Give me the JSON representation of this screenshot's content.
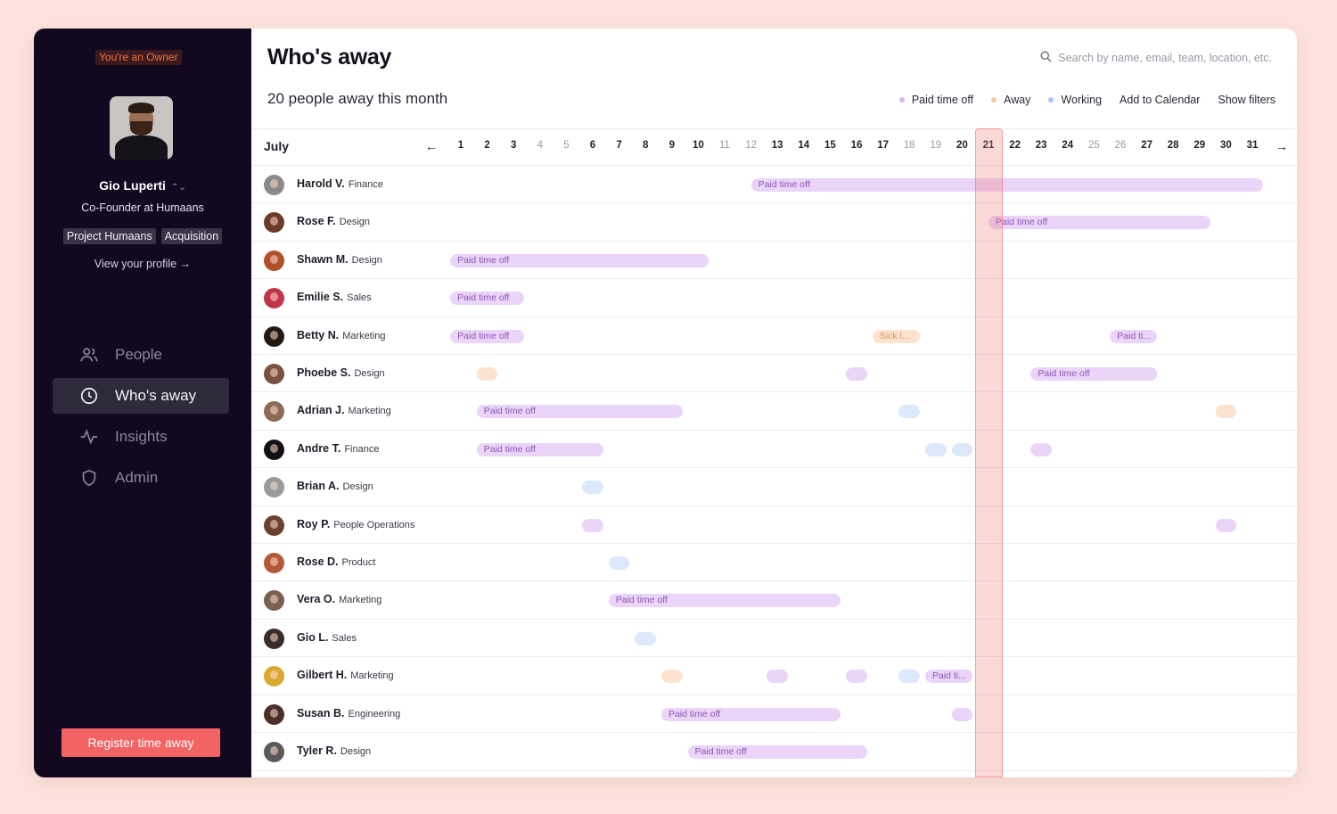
{
  "sidebar": {
    "owner_badge": "You're an Owner",
    "user_name": "Gio Luperti",
    "user_role": "Co-Founder at Humaans",
    "tags": [
      "Project Humaans",
      "Acquisition"
    ],
    "profile_link": "View your profile →",
    "nav": [
      {
        "label": "People",
        "icon": "people-icon",
        "active": false
      },
      {
        "label": "Who's away",
        "icon": "clock-icon",
        "active": true
      },
      {
        "label": "Insights",
        "icon": "activity-icon",
        "active": false
      },
      {
        "label": "Admin",
        "icon": "shield-icon",
        "active": false
      }
    ],
    "register_button": "Register time away"
  },
  "header": {
    "title": "Who's away",
    "search_placeholder": "Search by name, email, team, location, etc.",
    "summary": "20 people away this month",
    "legend": [
      {
        "label": "Paid time off",
        "color": "#d9b8f2"
      },
      {
        "label": "Away",
        "color": "#f9c9a4"
      },
      {
        "label": "Working",
        "color": "#a9c6f1"
      }
    ],
    "add_to_calendar": "Add to Calendar",
    "show_filters": "Show filters"
  },
  "calendar": {
    "month": "July",
    "prev_arrow": "←",
    "next_arrow": "→",
    "today": 21,
    "days": [
      {
        "d": "1",
        "we": false
      },
      {
        "d": "2",
        "we": false
      },
      {
        "d": "3",
        "we": false
      },
      {
        "d": "4",
        "we": true
      },
      {
        "d": "5",
        "we": true
      },
      {
        "d": "6",
        "we": false
      },
      {
        "d": "7",
        "we": false
      },
      {
        "d": "8",
        "we": false
      },
      {
        "d": "9",
        "we": false
      },
      {
        "d": "10",
        "we": false
      },
      {
        "d": "11",
        "we": true
      },
      {
        "d": "12",
        "we": true
      },
      {
        "d": "13",
        "we": false
      },
      {
        "d": "14",
        "we": false
      },
      {
        "d": "15",
        "we": false
      },
      {
        "d": "16",
        "we": false
      },
      {
        "d": "17",
        "we": false
      },
      {
        "d": "18",
        "we": true
      },
      {
        "d": "19",
        "we": true
      },
      {
        "d": "20",
        "we": false
      },
      {
        "d": "21",
        "we": false
      },
      {
        "d": "22",
        "we": false
      },
      {
        "d": "23",
        "we": false
      },
      {
        "d": "24",
        "we": false
      },
      {
        "d": "25",
        "we": true
      },
      {
        "d": "26",
        "we": true
      },
      {
        "d": "27",
        "we": false
      },
      {
        "d": "28",
        "we": false
      },
      {
        "d": "29",
        "we": false
      },
      {
        "d": "30",
        "we": false
      },
      {
        "d": "31",
        "we": false
      }
    ],
    "rows": [
      {
        "name": "Harold V.",
        "team": "Finance",
        "avatar": "#8a8a8a",
        "events": [
          {
            "type": "pto",
            "label": "Paid time off",
            "start": 12.0,
            "end": 31.4
          }
        ]
      },
      {
        "name": "Rose F.",
        "team": "Design",
        "avatar": "#6b3b2a",
        "events": [
          {
            "type": "pto",
            "label": "Paid time off",
            "start": 21.0,
            "end": 29.4
          }
        ]
      },
      {
        "name": "Shawn M.",
        "team": "Design",
        "avatar": "#b0502c",
        "events": [
          {
            "type": "pto",
            "label": "Paid time off",
            "start": 0.6,
            "end": 10.4
          }
        ]
      },
      {
        "name": "Emilie S.",
        "team": "Sales",
        "avatar": "#c2344a",
        "events": [
          {
            "type": "pto",
            "label": "Paid time off",
            "start": 0.6,
            "end": 3.4
          }
        ]
      },
      {
        "name": "Betty N.",
        "team": "Marketing",
        "avatar": "#241814",
        "events": [
          {
            "type": "pto",
            "label": "Paid time off",
            "start": 0.6,
            "end": 3.4
          },
          {
            "type": "away",
            "label": "Sick l...",
            "start": 16.6,
            "end": 18.4
          },
          {
            "type": "pto",
            "label": "Paid ti...",
            "start": 25.6,
            "end": 27.4
          }
        ]
      },
      {
        "name": "Phoebe S.",
        "team": "Design",
        "avatar": "#7a5340",
        "events": [
          {
            "type": "away",
            "label": "",
            "start": 1.6,
            "end": 2.4
          },
          {
            "type": "pto",
            "label": "",
            "start": 15.6,
            "end": 16.4
          },
          {
            "type": "pto",
            "label": "Paid time off",
            "start": 22.6,
            "end": 27.4
          }
        ]
      },
      {
        "name": "Adrian J.",
        "team": "Marketing",
        "avatar": "#8c6a55",
        "events": [
          {
            "type": "pto",
            "label": "Paid time off",
            "start": 1.6,
            "end": 9.4
          },
          {
            "type": "work",
            "label": "",
            "start": 17.6,
            "end": 18.4
          },
          {
            "type": "away",
            "label": "",
            "start": 29.6,
            "end": 30.4
          }
        ]
      },
      {
        "name": "Andre T.",
        "team": "Finance",
        "avatar": "#121014",
        "events": [
          {
            "type": "pto",
            "label": "Paid time off",
            "start": 1.6,
            "end": 6.4
          },
          {
            "type": "work",
            "label": "",
            "start": 18.6,
            "end": 19.4
          },
          {
            "type": "work",
            "label": "",
            "start": 19.6,
            "end": 20.4
          },
          {
            "type": "pto",
            "label": "",
            "start": 22.6,
            "end": 23.4
          }
        ]
      },
      {
        "name": "Brian A.",
        "team": "Design",
        "avatar": "#9a9a9a",
        "events": [
          {
            "type": "work",
            "label": "",
            "start": 5.6,
            "end": 6.4
          }
        ]
      },
      {
        "name": "Roy P.",
        "team": "People Operations",
        "avatar": "#6a4030",
        "events": [
          {
            "type": "pto",
            "label": "",
            "start": 5.6,
            "end": 6.4
          },
          {
            "type": "pto",
            "label": "",
            "start": 29.6,
            "end": 30.4
          }
        ]
      },
      {
        "name": "Rose D.",
        "team": "Product",
        "avatar": "#b25a3a",
        "events": [
          {
            "type": "work",
            "label": "",
            "start": 6.6,
            "end": 7.4
          }
        ]
      },
      {
        "name": "Vera O.",
        "team": "Marketing",
        "avatar": "#7a6050",
        "events": [
          {
            "type": "pto",
            "label": "Paid time off",
            "start": 6.6,
            "end": 15.4
          }
        ]
      },
      {
        "name": "Gio L.",
        "team": "Sales",
        "avatar": "#3a2c28",
        "events": [
          {
            "type": "work",
            "label": "",
            "start": 7.6,
            "end": 8.4
          }
        ]
      },
      {
        "name": "Gilbert H.",
        "team": "Marketing",
        "avatar": "#d8a830",
        "events": [
          {
            "type": "away",
            "label": "",
            "start": 8.6,
            "end": 9.4
          },
          {
            "type": "pto",
            "label": "",
            "start": 12.6,
            "end": 13.4
          },
          {
            "type": "pto",
            "label": "",
            "start": 15.6,
            "end": 16.4
          },
          {
            "type": "work",
            "label": "",
            "start": 17.6,
            "end": 18.4
          },
          {
            "type": "pto",
            "label": "Paid ti...",
            "start": 18.6,
            "end": 20.4
          }
        ]
      },
      {
        "name": "Susan B.",
        "team": "Engineering",
        "avatar": "#4a3028",
        "events": [
          {
            "type": "pto",
            "label": "Paid time off",
            "start": 8.6,
            "end": 15.4
          },
          {
            "type": "pto",
            "label": "",
            "start": 19.6,
            "end": 20.4
          }
        ]
      },
      {
        "name": "Tyler R.",
        "team": "Design",
        "avatar": "#5a5a5a",
        "events": [
          {
            "type": "pto",
            "label": "Paid time off",
            "start": 9.6,
            "end": 16.4
          }
        ]
      }
    ]
  }
}
